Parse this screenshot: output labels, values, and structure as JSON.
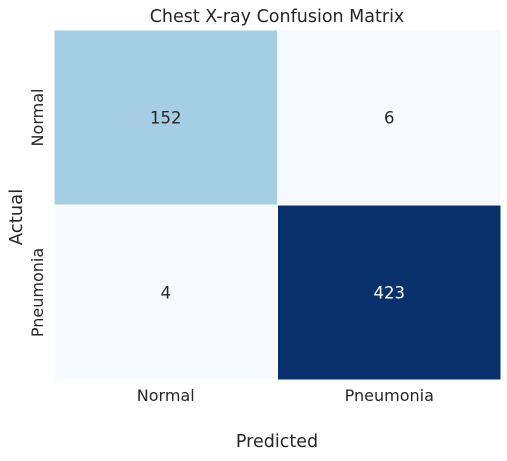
{
  "chart_data": {
    "type": "heatmap",
    "title": "Chest X-ray Confusion Matrix",
    "xlabel": "Predicted",
    "ylabel": "Actual",
    "x_categories": [
      "Normal",
      "Pneumonia"
    ],
    "y_categories": [
      "Normal",
      "Pneumonia"
    ],
    "values": [
      [
        152,
        6
      ],
      [
        4,
        423
      ]
    ],
    "colormap": "Blues",
    "colorbar": false,
    "grid": false,
    "colors": {
      "cell_color_high": "#08306b",
      "cell_color_mid": "#a6cee4",
      "cell_color_low": "#f7fbff",
      "cell_separator": "#ffffff",
      "text_dark": "#262626",
      "text_light": "#ffffff"
    }
  }
}
